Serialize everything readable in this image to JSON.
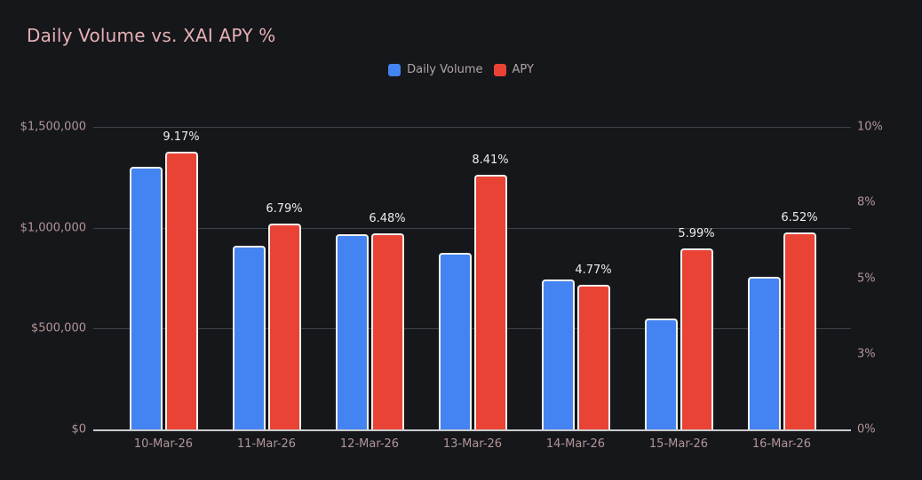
{
  "chart": {
    "title": "Daily Volume vs. XAI APY %"
  },
  "chart_data": {
    "type": "bar",
    "title": "Daily Volume vs. XAI APY %",
    "categories": [
      "10-Mar-26",
      "11-Mar-26",
      "12-Mar-26",
      "13-Mar-26",
      "14-Mar-26",
      "15-Mar-26",
      "16-Mar-26"
    ],
    "series": [
      {
        "name": "Daily Volume",
        "axis": "left",
        "color": "#4484f2",
        "values": [
          1300000,
          910000,
          970000,
          875000,
          745000,
          550000,
          755000
        ]
      },
      {
        "name": "APY",
        "axis": "right",
        "color": "#e94336",
        "values": [
          9.17,
          6.79,
          6.48,
          8.41,
          4.77,
          5.99,
          6.52
        ],
        "point_labels": [
          "9.17%",
          "6.79%",
          "6.48%",
          "8.41%",
          "4.77%",
          "5.99%",
          "6.52%"
        ]
      }
    ],
    "left_axis": {
      "ticks": [
        "$1,500,000",
        "$1,000,000",
        "$500,000",
        "$0"
      ],
      "range": [
        0,
        1500000
      ]
    },
    "right_axis": {
      "ticks": [
        "10%",
        "8%",
        "5%",
        "3%",
        "0%"
      ],
      "range": [
        0,
        10
      ]
    },
    "grid": true,
    "legend_position": "top-center",
    "colors": {
      "background": "#15171b",
      "title_text": "#e6b0b4",
      "axis_text": "#b29598",
      "legend_text": "#b2a4a6",
      "gridline": "#3f4247",
      "axis_line": "#cbccce",
      "bar_border": "#f2f0ed",
      "value_label": "#ebecec"
    }
  }
}
